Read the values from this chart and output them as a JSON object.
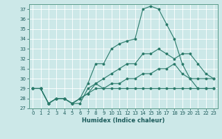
{
  "title": "",
  "xlabel": "Humidex (Indice chaleur)",
  "ylabel": "",
  "xlim": [
    -0.5,
    23.5
  ],
  "ylim": [
    27,
    37.5
  ],
  "yticks": [
    27,
    28,
    29,
    30,
    31,
    32,
    33,
    34,
    35,
    36,
    37
  ],
  "xticks": [
    0,
    1,
    2,
    3,
    4,
    5,
    6,
    7,
    8,
    9,
    10,
    11,
    12,
    13,
    14,
    15,
    16,
    17,
    18,
    19,
    20,
    21,
    22,
    23
  ],
  "bg_color": "#cce8e8",
  "line_color": "#2a7a6a",
  "grid_color": "#ffffff",
  "lines": [
    {
      "x": [
        0,
        1,
        2,
        3,
        4,
        5,
        6,
        7,
        8,
        9,
        10,
        11,
        12,
        13,
        14,
        15,
        16,
        17,
        18,
        19,
        20,
        21,
        22,
        23
      ],
      "y": [
        29,
        29,
        27.5,
        28,
        28,
        27.5,
        27.5,
        29,
        29.5,
        29.0,
        29.0,
        29.0,
        29.0,
        29.0,
        29.0,
        29.0,
        29.0,
        29.0,
        29.0,
        29.0,
        29.0,
        29.0,
        29.0,
        29.0
      ]
    },
    {
      "x": [
        0,
        1,
        2,
        3,
        4,
        5,
        6,
        7,
        8,
        9,
        10,
        11,
        12,
        13,
        14,
        15,
        16,
        17,
        18,
        19,
        20,
        21,
        22,
        23
      ],
      "y": [
        29,
        29,
        27.5,
        28,
        28,
        27.5,
        28.0,
        29.5,
        31.5,
        31.5,
        33,
        33.5,
        33.8,
        34.0,
        37.0,
        37.3,
        37.0,
        35.5,
        34.0,
        31.5,
        30.0,
        29.0,
        29.0,
        29.0
      ]
    },
    {
      "x": [
        0,
        1,
        2,
        3,
        4,
        5,
        6,
        7,
        8,
        9,
        10,
        11,
        12,
        13,
        14,
        15,
        16,
        17,
        18,
        19,
        20,
        21,
        22,
        23
      ],
      "y": [
        29,
        29,
        27.5,
        28,
        28,
        27.5,
        28.0,
        28.5,
        29.5,
        30.0,
        30.5,
        31.0,
        31.5,
        31.5,
        32.5,
        32.5,
        33.0,
        32.5,
        32.0,
        32.5,
        32.5,
        31.5,
        30.5,
        30.0
      ]
    },
    {
      "x": [
        0,
        1,
        2,
        3,
        4,
        5,
        6,
        7,
        8,
        9,
        10,
        11,
        12,
        13,
        14,
        15,
        16,
        17,
        18,
        19,
        20,
        21,
        22,
        23
      ],
      "y": [
        29,
        29,
        27.5,
        28,
        28,
        27.5,
        28.0,
        28.5,
        29.0,
        29.0,
        29.5,
        29.5,
        30.0,
        30.0,
        30.5,
        30.5,
        31.0,
        31.0,
        31.5,
        30.5,
        30.0,
        30.0,
        30.0,
        30.0
      ]
    }
  ]
}
